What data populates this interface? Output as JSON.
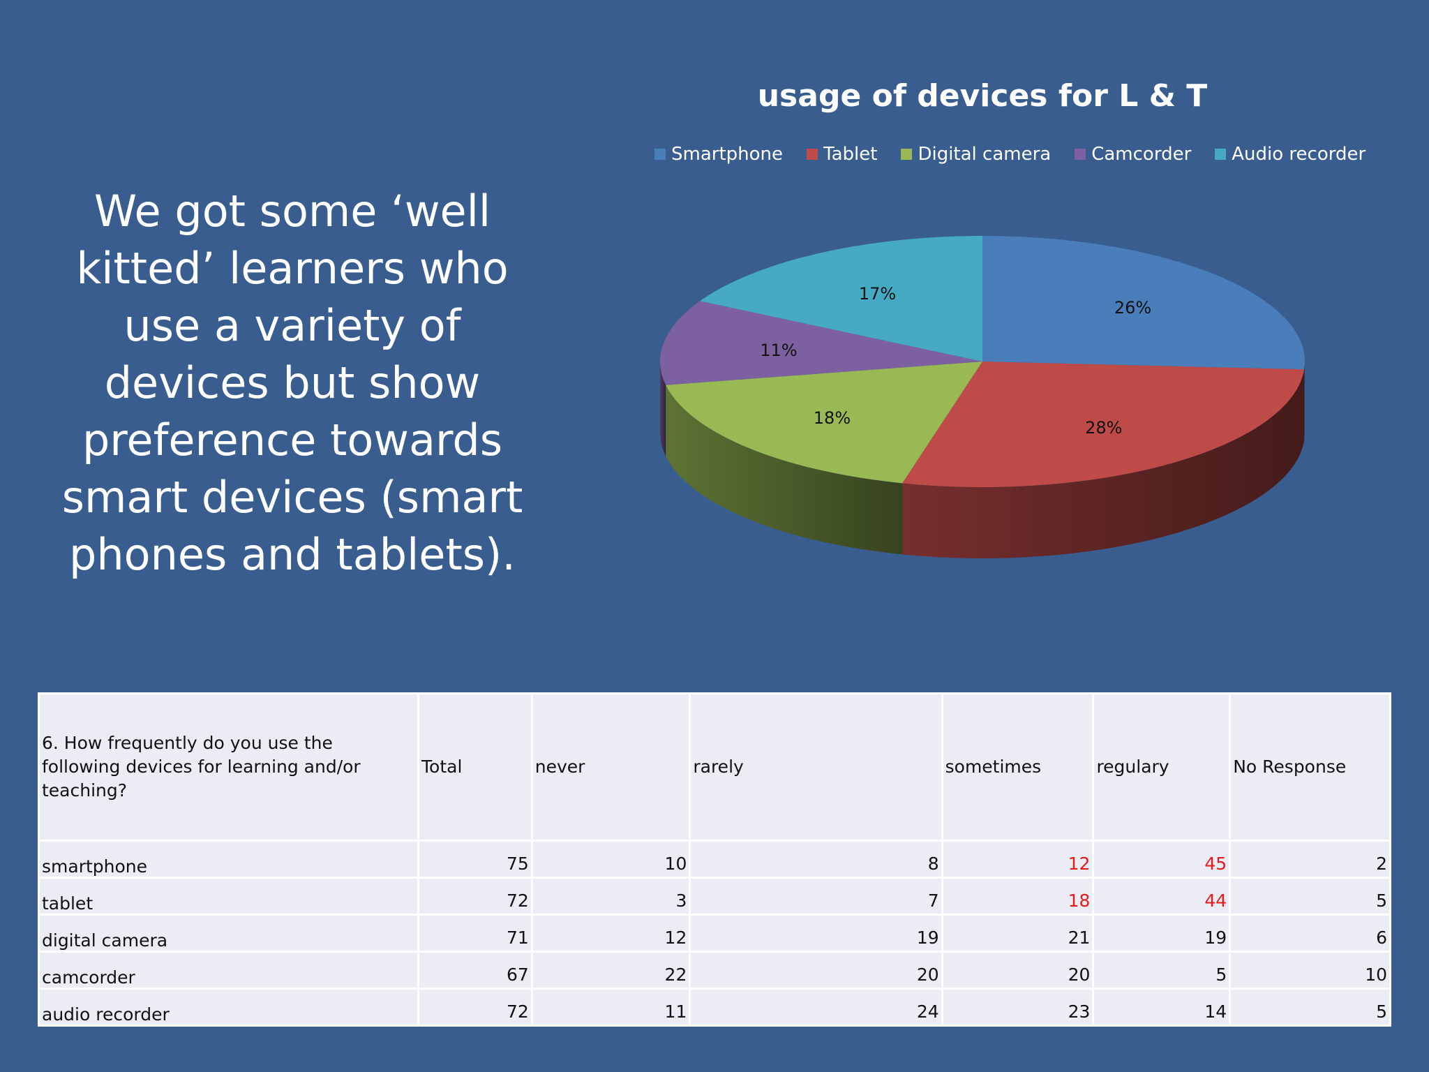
{
  "slide": {
    "text": "We got  some ‘well kitted’ learners who use a variety of devices but show preference towards smart devices (smart phones and tablets)."
  },
  "chart_data": {
    "type": "pie",
    "title": "usage of devices for L & T",
    "legend_position": "top",
    "three_d": true,
    "categories": [
      "Smartphone",
      "Tablet",
      "Digital camera",
      "Camcorder",
      "Audio recorder"
    ],
    "values": [
      26,
      28,
      18,
      11,
      17
    ],
    "labels": [
      "26%",
      "28%",
      "18%",
      "11%",
      "17%"
    ],
    "colors": [
      "#4A7EBB",
      "#BE4B48",
      "#98B954",
      "#7D60A0",
      "#46AAC5"
    ]
  },
  "table": {
    "question": "6. How frequently do you use the following devices for learning and/or teaching?",
    "columns": [
      "Total",
      "never",
      "rarely",
      "sometimes",
      "regulary",
      "No Response"
    ],
    "rows": [
      {
        "label": "smartphone",
        "cells": [
          "75",
          "10",
          "8",
          "12",
          "45",
          "2"
        ]
      },
      {
        "label": "tablet",
        "cells": [
          "72",
          "3",
          "7",
          "18",
          "44",
          "5"
        ]
      },
      {
        "label": "digital camera",
        "cells": [
          "71",
          "12",
          "19",
          "21",
          "19",
          "6"
        ]
      },
      {
        "label": "camcorder",
        "cells": [
          "67",
          "22",
          "20",
          "20",
          "5",
          "10"
        ]
      },
      {
        "label": "audio recorder",
        "cells": [
          "72",
          "11",
          "24",
          "23",
          "14",
          "5"
        ]
      }
    ],
    "highlight_color": "#E21C1C",
    "highlighted_cells": [
      [
        0,
        3
      ],
      [
        0,
        4
      ],
      [
        1,
        3
      ],
      [
        1,
        4
      ]
    ]
  }
}
